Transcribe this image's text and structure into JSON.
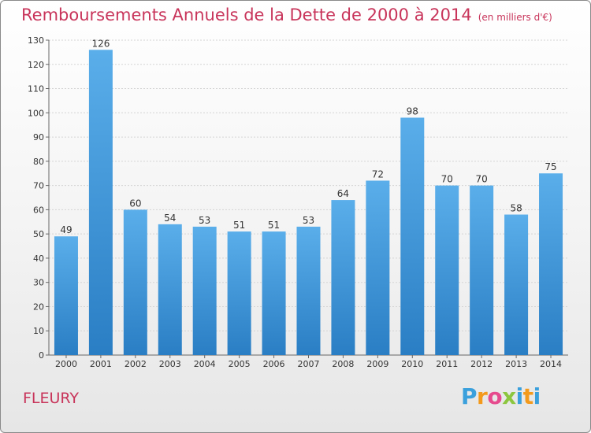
{
  "header": {
    "title": "Remboursements Annuels de la Dette de 2000 à 2014",
    "unit": "(en milliers d'€)"
  },
  "footer": {
    "city": "FLEURY",
    "logo_letters": [
      "P",
      "r",
      "o",
      "x",
      "i",
      "t",
      "i"
    ],
    "logo_colors": [
      "#3aa0dc",
      "#f39a1c",
      "#e64b8e",
      "#8cc63f",
      "#3aa0dc",
      "#f39a1c",
      "#3aa0dc"
    ]
  },
  "colors": {
    "bar_light": "#5aaeea",
    "bar_dark": "#2a7ec4",
    "title": "#c8345a"
  },
  "chart_data": {
    "type": "bar",
    "categories": [
      "2000",
      "2001",
      "2002",
      "2003",
      "2004",
      "2005",
      "2006",
      "2007",
      "2008",
      "2009",
      "2010",
      "2011",
      "2012",
      "2013",
      "2014"
    ],
    "values": [
      49,
      126,
      60,
      54,
      53,
      51,
      51,
      53,
      64,
      72,
      98,
      70,
      70,
      58,
      75
    ],
    "ylim": [
      0,
      130
    ],
    "yticks": [
      0,
      10,
      20,
      30,
      40,
      50,
      60,
      70,
      80,
      90,
      100,
      110,
      120,
      130
    ],
    "grid": "horizontal",
    "data_labels": true
  }
}
